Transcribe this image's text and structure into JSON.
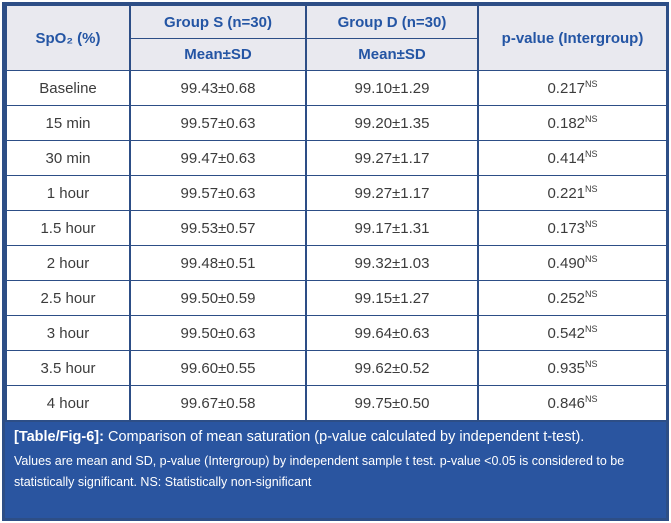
{
  "header": {
    "spo2_label": "SpO₂ (%)",
    "group_s_label": "Group S (n=30)",
    "group_d_label": "Group D (n=30)",
    "mean_sd_s": "Mean±SD",
    "mean_sd_d": "Mean±SD",
    "p_value_label": "p-value (Intergroup)"
  },
  "rows": [
    {
      "time": "Baseline",
      "group_s": "99.43±0.68",
      "group_d": "99.10±1.29",
      "p": "0.217",
      "p_sup": "NS"
    },
    {
      "time": "15 min",
      "group_s": "99.57±0.63",
      "group_d": "99.20±1.35",
      "p": "0.182",
      "p_sup": "NS"
    },
    {
      "time": "30 min",
      "group_s": "99.47±0.63",
      "group_d": "99.27±1.17",
      "p": "0.414",
      "p_sup": "NS"
    },
    {
      "time": "1 hour",
      "group_s": "99.57±0.63",
      "group_d": "99.27±1.17",
      "p": "0.221",
      "p_sup": "NS"
    },
    {
      "time": "1.5 hour",
      "group_s": "99.53±0.57",
      "group_d": "99.17±1.31",
      "p": "0.173",
      "p_sup": "NS"
    },
    {
      "time": "2 hour",
      "group_s": "99.48±0.51",
      "group_d": "99.32±1.03",
      "p": "0.490",
      "p_sup": "NS"
    },
    {
      "time": "2.5 hour",
      "group_s": "99.50±0.59",
      "group_d": "99.15±1.27",
      "p": "0.252",
      "p_sup": "NS"
    },
    {
      "time": "3 hour",
      "group_s": "99.50±0.63",
      "group_d": "99.64±0.63",
      "p": "0.542",
      "p_sup": "NS"
    },
    {
      "time": "3.5 hour",
      "group_s": "99.60±0.55",
      "group_d": "99.62±0.52",
      "p": "0.935",
      "p_sup": "NS"
    },
    {
      "time": "4 hour",
      "group_s": "99.67±0.58",
      "group_d": "99.75±0.50",
      "p": "0.846",
      "p_sup": "NS"
    }
  ],
  "caption": {
    "tag": "[Table/Fig-6]:",
    "title": " Comparison of mean saturation (p-value calculated by independent t-test).",
    "note": "Values are mean and SD, p-value (Intergroup) by independent sample t test. p-value <0.05 is considered to be statistically significant. NS: Statistically non-significant"
  },
  "colors": {
    "border_navy": "#2d4e86",
    "header_bg": "#e9e9ef",
    "header_text_blue": "#2455a4",
    "caption_bg": "#2a55a0",
    "caption_text": "#ffffff",
    "data_text": "#3c3c3c"
  }
}
